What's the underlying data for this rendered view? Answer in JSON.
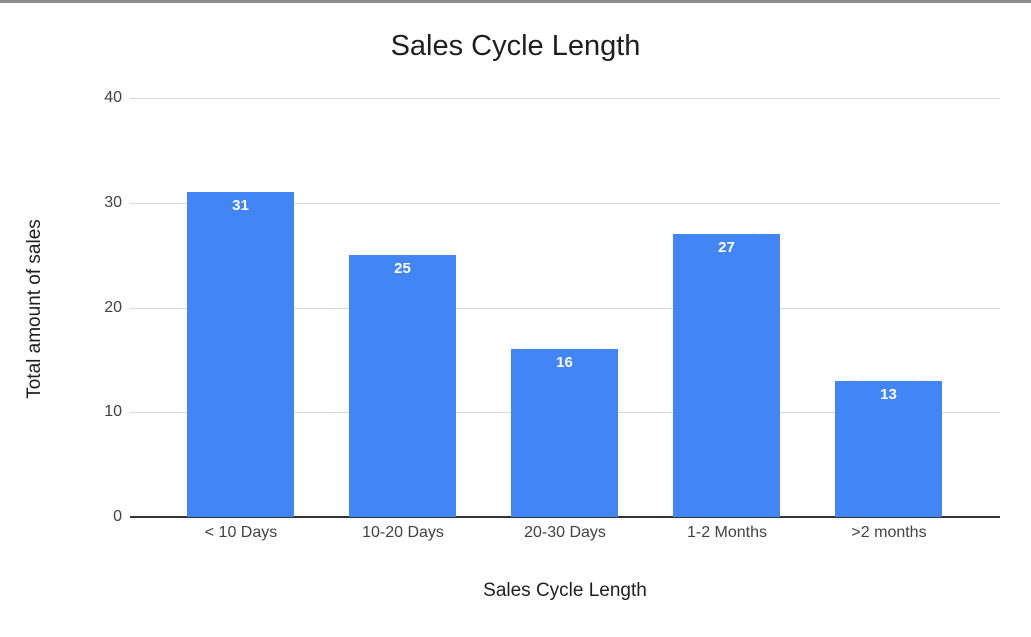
{
  "page": {
    "background_color": "#ffffff",
    "top_strip_color": "#8c8c8c"
  },
  "chart_data": {
    "type": "bar",
    "title": "Sales Cycle Length",
    "xlabel": "Sales Cycle Length",
    "ylabel": "Total amount of sales",
    "categories": [
      "< 10 Days",
      "10-20 Days",
      "20-30 Days",
      "1-2 Months",
      ">2 months"
    ],
    "values": [
      31,
      25,
      16,
      27,
      13
    ],
    "data_labels": [
      "31",
      "25",
      "16",
      "27",
      "13"
    ],
    "ylim": [
      0,
      40
    ],
    "yticks": [
      0,
      10,
      20,
      30,
      40
    ],
    "grid": true,
    "legend_position": "none",
    "bar_color": "#4285f4",
    "data_label_color": "#ffffff",
    "gridline_color": "#d9d9d9",
    "axis_line_color": "#333333",
    "tick_label_color": "#424242"
  }
}
